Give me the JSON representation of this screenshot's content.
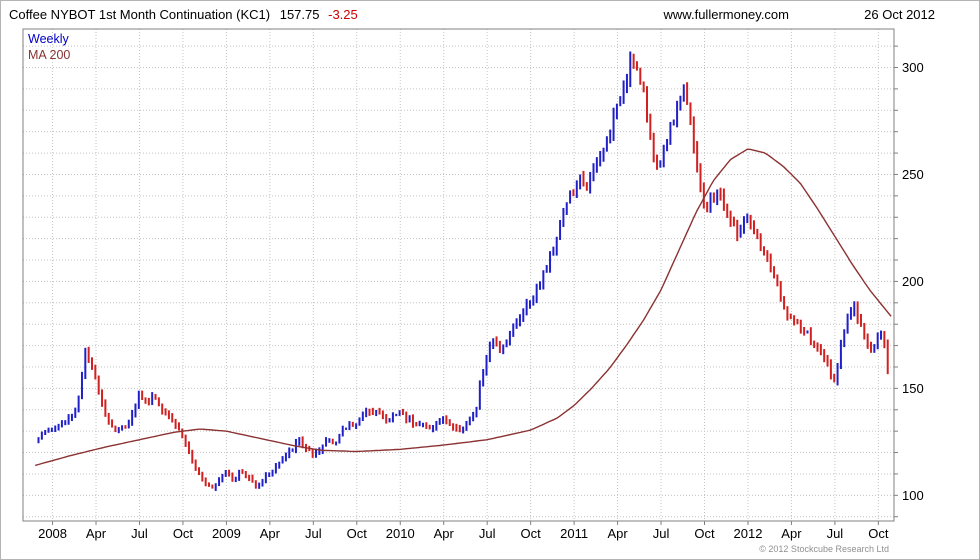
{
  "header": {
    "title": "Coffee NYBOT 1st Month Continuation (KC1)",
    "last": "157.75",
    "change": "-3.25",
    "site": "www.fullermoney.com",
    "date": "26 Oct 2012"
  },
  "legend": {
    "weekly": "Weekly",
    "ma": "MA 200"
  },
  "footer": {
    "copyright": "© 2012 Stockcube Research Ltd"
  },
  "colors": {
    "up": "#2020c8",
    "down": "#d02020",
    "ma": "#8b3232",
    "legend_weekly": "#0000c8",
    "change_negative": "#cc0000",
    "grid": "#c4c4c4",
    "frame": "#808080",
    "axis_text": "#000000",
    "copyright": "#909090"
  },
  "chart_data": {
    "type": "ohlc-bar",
    "title": "Coffee NYBOT 1st Month Continuation (KC1)",
    "timeframe": "Weekly",
    "overlay": "MA 200",
    "last_close": 157.75,
    "change": -3.25,
    "x_domain": [
      2007.83,
      2012.84
    ],
    "ylim": [
      88,
      318
    ],
    "yticks": [
      100,
      150,
      200,
      250,
      300
    ],
    "grid_step": 10,
    "xticks": [
      {
        "label": "2008",
        "x": 2008.0
      },
      {
        "label": "Apr",
        "x": 2008.25
      },
      {
        "label": "Jul",
        "x": 2008.5
      },
      {
        "label": "Oct",
        "x": 2008.75
      },
      {
        "label": "2009",
        "x": 2009.0
      },
      {
        "label": "Apr",
        "x": 2009.25
      },
      {
        "label": "Jul",
        "x": 2009.5
      },
      {
        "label": "Oct",
        "x": 2009.75
      },
      {
        "label": "2010",
        "x": 2010.0
      },
      {
        "label": "Apr",
        "x": 2010.25
      },
      {
        "label": "Jul",
        "x": 2010.5
      },
      {
        "label": "Oct",
        "x": 2010.75
      },
      {
        "label": "2011",
        "x": 2011.0
      },
      {
        "label": "Apr",
        "x": 2011.25
      },
      {
        "label": "Jul",
        "x": 2011.5
      },
      {
        "label": "Oct",
        "x": 2011.75
      },
      {
        "label": "2012",
        "x": 2012.0
      },
      {
        "label": "Apr",
        "x": 2012.25
      },
      {
        "label": "Jul",
        "x": 2012.5
      },
      {
        "label": "Oct",
        "x": 2012.75
      }
    ],
    "price_waypoints": [
      [
        2007.9,
        126
      ],
      [
        2007.96,
        130
      ],
      [
        2008.02,
        132
      ],
      [
        2008.08,
        135
      ],
      [
        2008.14,
        141
      ],
      [
        2008.19,
        168
      ],
      [
        2008.23,
        158
      ],
      [
        2008.27,
        149
      ],
      [
        2008.31,
        136
      ],
      [
        2008.37,
        130
      ],
      [
        2008.42,
        133
      ],
      [
        2008.46,
        138
      ],
      [
        2008.5,
        148
      ],
      [
        2008.54,
        143
      ],
      [
        2008.58,
        147
      ],
      [
        2008.62,
        141
      ],
      [
        2008.67,
        138
      ],
      [
        2008.71,
        133
      ],
      [
        2008.75,
        127
      ],
      [
        2008.79,
        119
      ],
      [
        2008.83,
        110
      ],
      [
        2008.88,
        106
      ],
      [
        2008.92,
        104
      ],
      [
        2008.96,
        108
      ],
      [
        2009.0,
        112
      ],
      [
        2009.04,
        107
      ],
      [
        2009.08,
        111
      ],
      [
        2009.13,
        108
      ],
      [
        2009.17,
        105
      ],
      [
        2009.21,
        107
      ],
      [
        2009.25,
        111
      ],
      [
        2009.29,
        114
      ],
      [
        2009.33,
        117
      ],
      [
        2009.37,
        121
      ],
      [
        2009.42,
        126
      ],
      [
        2009.46,
        122
      ],
      [
        2009.5,
        118
      ],
      [
        2009.54,
        121
      ],
      [
        2009.58,
        127
      ],
      [
        2009.63,
        125
      ],
      [
        2009.67,
        130
      ],
      [
        2009.71,
        133
      ],
      [
        2009.75,
        134
      ],
      [
        2009.79,
        137
      ],
      [
        2009.83,
        141
      ],
      [
        2009.88,
        138
      ],
      [
        2009.92,
        134
      ],
      [
        2009.96,
        137
      ],
      [
        2010.0,
        139
      ],
      [
        2010.04,
        136
      ],
      [
        2010.08,
        134
      ],
      [
        2010.13,
        133
      ],
      [
        2010.17,
        131
      ],
      [
        2010.21,
        134
      ],
      [
        2010.25,
        136
      ],
      [
        2010.29,
        133
      ],
      [
        2010.33,
        130
      ],
      [
        2010.37,
        133
      ],
      [
        2010.42,
        137
      ],
      [
        2010.44,
        141
      ],
      [
        2010.46,
        152
      ],
      [
        2010.5,
        166
      ],
      [
        2010.54,
        172
      ],
      [
        2010.58,
        168
      ],
      [
        2010.62,
        174
      ],
      [
        2010.67,
        180
      ],
      [
        2010.71,
        187
      ],
      [
        2010.75,
        192
      ],
      [
        2010.79,
        198
      ],
      [
        2010.83,
        205
      ],
      [
        2010.88,
        215
      ],
      [
        2010.92,
        228
      ],
      [
        2010.96,
        238
      ],
      [
        2011.0,
        242
      ],
      [
        2011.04,
        248
      ],
      [
        2011.08,
        244
      ],
      [
        2011.13,
        255
      ],
      [
        2011.17,
        262
      ],
      [
        2011.21,
        272
      ],
      [
        2011.25,
        281
      ],
      [
        2011.29,
        293
      ],
      [
        2011.33,
        306
      ],
      [
        2011.37,
        296
      ],
      [
        2011.4,
        287
      ],
      [
        2011.44,
        266
      ],
      [
        2011.48,
        251
      ],
      [
        2011.52,
        263
      ],
      [
        2011.56,
        274
      ],
      [
        2011.6,
        285
      ],
      [
        2011.63,
        291
      ],
      [
        2011.66,
        278
      ],
      [
        2011.69,
        262
      ],
      [
        2011.72,
        248
      ],
      [
        2011.75,
        233
      ],
      [
        2011.79,
        238
      ],
      [
        2011.83,
        242
      ],
      [
        2011.87,
        234
      ],
      [
        2011.9,
        228
      ],
      [
        2011.94,
        222
      ],
      [
        2011.98,
        228
      ],
      [
        2012.02,
        226
      ],
      [
        2012.06,
        218
      ],
      [
        2012.1,
        212
      ],
      [
        2012.15,
        203
      ],
      [
        2012.19,
        190
      ],
      [
        2012.23,
        184
      ],
      [
        2012.27,
        180
      ],
      [
        2012.31,
        178
      ],
      [
        2012.35,
        174
      ],
      [
        2012.38,
        170
      ],
      [
        2012.42,
        167
      ],
      [
        2012.46,
        160
      ],
      [
        2012.5,
        154
      ],
      [
        2012.52,
        161
      ],
      [
        2012.54,
        172
      ],
      [
        2012.58,
        183
      ],
      [
        2012.6,
        188
      ],
      [
        2012.63,
        184
      ],
      [
        2012.67,
        176
      ],
      [
        2012.69,
        170
      ],
      [
        2012.71,
        167
      ],
      [
        2012.75,
        174
      ],
      [
        2012.77,
        176
      ],
      [
        2012.79,
        168
      ],
      [
        2012.81,
        162
      ],
      [
        2012.82,
        157.75
      ]
    ],
    "ma_waypoints": [
      [
        2007.9,
        114
      ],
      [
        2008.1,
        118.5
      ],
      [
        2008.3,
        122.5
      ],
      [
        2008.5,
        126
      ],
      [
        2008.7,
        129.5
      ],
      [
        2008.85,
        131
      ],
      [
        2009.0,
        130
      ],
      [
        2009.2,
        126.5
      ],
      [
        2009.4,
        123
      ],
      [
        2009.55,
        121
      ],
      [
        2009.75,
        120.5
      ],
      [
        2010.0,
        121.5
      ],
      [
        2010.25,
        123.5
      ],
      [
        2010.5,
        126
      ],
      [
        2010.75,
        130.5
      ],
      [
        2010.9,
        136
      ],
      [
        2011.0,
        142
      ],
      [
        2011.1,
        150
      ],
      [
        2011.2,
        159
      ],
      [
        2011.3,
        170
      ],
      [
        2011.4,
        182
      ],
      [
        2011.5,
        196
      ],
      [
        2011.6,
        214
      ],
      [
        2011.7,
        232
      ],
      [
        2011.8,
        247
      ],
      [
        2011.9,
        257
      ],
      [
        2012.0,
        262
      ],
      [
        2012.1,
        260
      ],
      [
        2012.2,
        254
      ],
      [
        2012.3,
        246
      ],
      [
        2012.4,
        234
      ],
      [
        2012.5,
        221
      ],
      [
        2012.6,
        208
      ],
      [
        2012.7,
        196
      ],
      [
        2012.8,
        186
      ],
      [
        2012.84,
        182
      ]
    ],
    "bar_range_pct": 0.012
  }
}
